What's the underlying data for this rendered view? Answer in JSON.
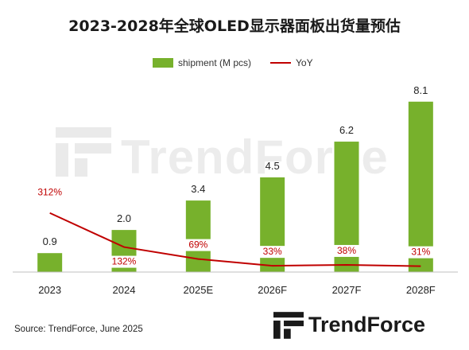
{
  "chart_data": {
    "type": "bar",
    "title": "2023-2028年全球OLED显示器面板出货量预估",
    "categories": [
      "2023",
      "2024",
      "2025E",
      "2026F",
      "2027F",
      "2028F"
    ],
    "series": [
      {
        "name": "shipment (M pcs)",
        "type": "bar",
        "values": [
          0.9,
          2.0,
          3.4,
          4.5,
          6.2,
          8.1
        ],
        "labels": [
          "0.9",
          "2.0",
          "3.4",
          "4.5",
          "6.2",
          "8.1"
        ]
      },
      {
        "name": "YoY",
        "type": "line",
        "values": [
          312,
          132,
          69,
          33,
          38,
          31
        ],
        "labels": [
          "312%",
          "132%",
          "69%",
          "33%",
          "38%",
          "31%"
        ]
      }
    ],
    "ylim": [
      0,
      9
    ],
    "y2lim": [
      0,
      1000
    ],
    "legend": "top-center",
    "grid": false
  },
  "colors": {
    "bar": "#77b12c",
    "line": "#c00000",
    "line_label": "#c00000",
    "axis": "#bfbfbf"
  },
  "source": "Source: TrendForce, June 2025",
  "watermark": "TrendForce",
  "brand": "TrendForce"
}
